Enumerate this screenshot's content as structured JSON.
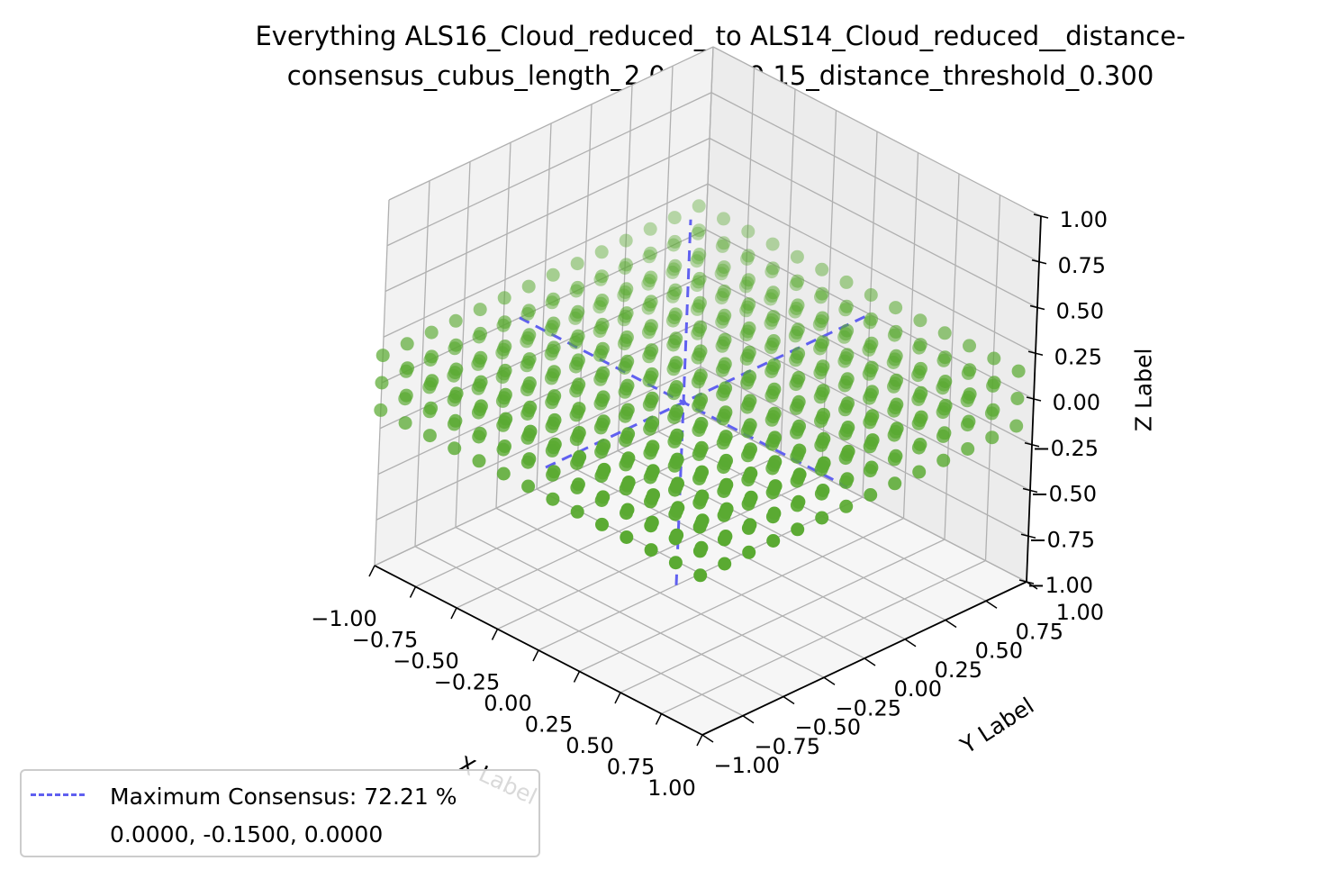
{
  "colors": {
    "point": "#5aaa32",
    "consensus_line": "#6060f0",
    "pane": "#f2f2f2",
    "grid": "#b0b0b0"
  },
  "legend": {
    "entry_label": "Maximum Consensus: 72.21 %",
    "coordinates_label": "0.0000, -0.1500, 0.0000"
  },
  "chart_data": {
    "type": "scatter",
    "projection": "3d",
    "title_lines": [
      "Everything ALS16_Cloud_reduced_ to ALS14_Cloud_reduced__distance-",
      "consensus_cubus_length_2.0_step_0.15_distance_threshold_0.300"
    ],
    "xlabel": "X Label",
    "ylabel": "Y Label",
    "zlabel": "Z Label",
    "xlim": [
      -1.0,
      1.0
    ],
    "ylim": [
      -1.0,
      1.0
    ],
    "zlim": [
      -1.0,
      1.0
    ],
    "x_ticks": [
      "−1.00",
      "−0.75",
      "−0.50",
      "−0.25",
      "0.00",
      "0.25",
      "0.50",
      "0.75",
      "1.00"
    ],
    "y_ticks": [
      "−1.00",
      "−0.75",
      "−0.50",
      "−0.25",
      "0.00",
      "0.25",
      "0.50",
      "0.75",
      "1.00"
    ],
    "z_ticks": [
      "−1.00",
      "−0.75",
      "−0.50",
      "−0.25",
      "0.00",
      "0.25",
      "0.50",
      "0.75",
      "1.00"
    ],
    "grid": true,
    "legend_position": "lower-left",
    "point_grid": {
      "x_start": -1.0,
      "x_step": 0.15,
      "x_count": 14,
      "y_start": -1.0,
      "y_step": 0.15,
      "y_count": 14,
      "z_layers": [
        -0.15,
        0.0,
        0.15
      ]
    },
    "consensus_point": {
      "x": 0.0,
      "y": -0.15,
      "z": 0.0
    },
    "consensus_percent": 72.21
  }
}
